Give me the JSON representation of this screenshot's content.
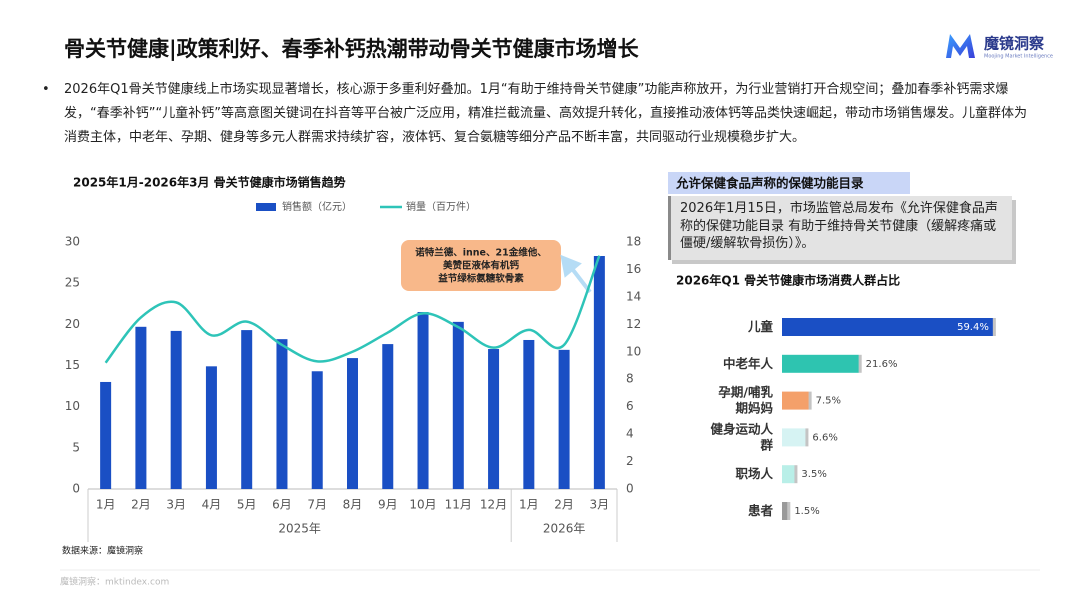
{
  "header": {
    "title": "骨关节健康|政策利好、春季补钙热潮带动骨关节健康市场增长",
    "logo": "魔镜洞察",
    "logo_sub": "Moojing Market Intelligence"
  },
  "summary": "2026年Q1骨关节健康线上市场实现显著增长，核心源于多重利好叠加。1月“有助于维持骨关节健康”功能声称放开，为行业营销打开合规空间；叠加春季补钙需求爆发，“春季补钙”“儿童补钙”等高意图关键词在抖音等平台被广泛应用，精准拦截流量、高效提升转化，直接推动液体钙等品类快速崛起，带动市场销售爆发。儿童群体为消费主体，中老年、孕期、健身等多元人群需求持续扩容，液体钙、复合氨糖等细分产品不断丰富，共同驱动行业规模稳步扩大。",
  "note": {
    "title": "允许保健食品声称的保健功能目录",
    "body": "2026年1月15日，市场监管总局发布《允许保健食品声称的保健功能目录 有助于维持骨关节健康（缓解疼痛或僵硬/缓解软骨损伤）》。"
  },
  "source": "数据来源：魔镜洞察",
  "footer": "魔镜洞察：mktindex.com",
  "chart_data": [
    {
      "type": "combo",
      "title": "2025年1月-2026年3月 骨关节健康市场销售趋势",
      "groups": [
        {
          "label": "2025年",
          "categories": [
            "1月",
            "2月",
            "3月",
            "4月",
            "5月",
            "6月",
            "7月",
            "8月",
            "9月",
            "10月",
            "11月",
            "12月"
          ]
        },
        {
          "label": "2026年",
          "categories": [
            "1月",
            "2月",
            "3月"
          ]
        }
      ],
      "series": [
        {
          "name": "销售额（亿元）",
          "type": "bar",
          "color": "#1a4fc4",
          "values": [
            13.0,
            19.7,
            19.2,
            14.9,
            19.3,
            18.2,
            14.3,
            15.9,
            17.6,
            21.5,
            20.3,
            17.0,
            18.1,
            16.9,
            28.3
          ]
        },
        {
          "name": "销量（百万件）",
          "type": "line",
          "axis": "y2",
          "color": "#2ec4b8",
          "values": [
            9.2,
            12.5,
            13.6,
            11.2,
            12.2,
            10.5,
            9.3,
            10.0,
            11.4,
            12.8,
            11.8,
            10.3,
            11.6,
            10.5,
            17.0
          ]
        }
      ],
      "ylim": [
        0,
        30
      ],
      "yticks": [
        0,
        5,
        10,
        15,
        20,
        25,
        30
      ],
      "y2lim": [
        0,
        18
      ],
      "y2ticks": [
        0,
        2,
        4,
        6,
        8,
        10,
        12,
        14,
        16,
        18
      ],
      "annotation": [
        "诺特兰德、inne、21金维他、",
        "美赞臣液体有机钙",
        "益节绿标氨糖软骨素"
      ]
    },
    {
      "type": "hbar",
      "title": "2026年Q1 骨关节健康市场消费人群占比",
      "categories": [
        "儿童",
        "中老年人",
        "孕期/哺乳期妈妈",
        "健身运动人群",
        "职场人",
        "患者"
      ],
      "values": [
        59.4,
        21.6,
        7.5,
        6.6,
        3.5,
        1.5
      ],
      "value_labels": [
        "59.4%",
        "21.6%",
        "7.5%",
        "6.6%",
        "3.5%",
        "1.5%"
      ],
      "colors": [
        "#1a4fc4",
        "#2ec4b0",
        "#f4a06a",
        "#d6f3f3",
        "#b9efe8",
        "#9a9a9a"
      ]
    }
  ]
}
